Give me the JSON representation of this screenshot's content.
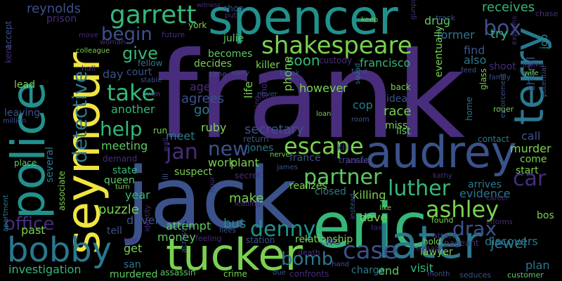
{
  "colors": {
    "background": "#000000",
    "yellow": "#f0e442",
    "green": "#5ec962",
    "light_green": "#7ad151",
    "teal": "#21918c",
    "blue_teal": "#2a788e",
    "blue": "#3b528b",
    "purple": "#472d7b",
    "dark_purple": "#440154",
    "mint": "#35b779"
  },
  "words": {
    "frank": "frank",
    "jack": "jack",
    "spencer": "spencer",
    "eric": "eric",
    "audrey": "audrey",
    "tucker": "tucker",
    "later": "later",
    "seymour": "seymour",
    "police": "police",
    "bobby": "bobby",
    "terry": "terry",
    "shakespeare": "shakespeare",
    "garrett": "garrett",
    "ashley": "ashley",
    "luther": "luther",
    "partner": "partner",
    "denny": "denny",
    "escape": "escape",
    "case": "case",
    "box": "box",
    "car": "car",
    "bomb": "bomb",
    "help": "help",
    "take": "take",
    "give": "give",
    "begin": "begin",
    "detective": "detective",
    "jan": "jan",
    "new": "new",
    "drax": "drax",
    "jewel": "jewel",
    "reynolds": "reynolds",
    "shop": "shop",
    "put": "put",
    "receives": "receives",
    "chase": "chase",
    "drug": "drug",
    "former": "former",
    "try": "try",
    "find": "find",
    "also": "also",
    "soon": "soon",
    "francisco": "francisco",
    "becomes": "becomes",
    "julie": "julie",
    "york": "york",
    "decides": "decides",
    "killer": "killer",
    "agent": "agent",
    "agrees": "agrees",
    "go": "go",
    "however": "however",
    "idea": "idea",
    "back": "back",
    "cop": "cop",
    "race": "race",
    "miss": "miss",
    "list": "list",
    "secretary": "secretary",
    "ruby": "ruby",
    "meet": "meet",
    "another": "another",
    "meeting": "meeting",
    "work": "work",
    "plant": "plant",
    "suspect": "suspect",
    "jones": "jones",
    "france": "france",
    "realizes": "realizes",
    "closed": "closed",
    "killing": "killing",
    "make": "make",
    "attempt": "attempt",
    "money": "money",
    "bus": "bus",
    "dave": "dave",
    "two": "two",
    "relationship": "relationship",
    "charge": "charge",
    "end": "end",
    "visit": "visit",
    "lawyer": "lawyer",
    "hold": "hold",
    "discovers": "discovers",
    "plan": "plan",
    "evidence": "evidence",
    "arrives": "arrives",
    "start": "start",
    "come": "come",
    "murder": "murder",
    "call": "call",
    "contact": "contact",
    "bos": "bos",
    "office": "office",
    "past": "past",
    "investigation": "investigation",
    "year": "year",
    "puzzle": "puzzle",
    "driver": "driver",
    "tell": "tell",
    "get": "get",
    "san": "san",
    "murdered": "murdered",
    "assassin": "assassin",
    "crime": "crime",
    "confronts": "confronts",
    "customer": "customer",
    "state": "state",
    "queen": "queen",
    "demand": "demand",
    "leaving": "leaving",
    "lead": "lead",
    "kent": "kent",
    "prison": "prison",
    "day": "day",
    "court": "court",
    "fellow": "fellow",
    "place": "place",
    "several": "several",
    "associate": "associate",
    "life": "life",
    "phone": "phone",
    "shot": "shot",
    "eventually": "eventually",
    "cheryl": "cheryl",
    "job": "job",
    "shoot": "shoot",
    "home": "home",
    "learns": "learns",
    "wife": "wife",
    "transfer": "transfer",
    "kill": "kill",
    "loan": "loan",
    "squad": "squad",
    "fund": "fund",
    "custody": "custody",
    "secret": "secret",
    "james": "james",
    "nerve": "nerve",
    "return": "return",
    "station": "station",
    "death": "death",
    "hour": "hour",
    "leading": "leading",
    "feeling": "feeling",
    "across": "across",
    "flees": "flees",
    "hand": "hand",
    "tax": "tax",
    "like": "like",
    "found": "found",
    "reveals": "reveals",
    "pageant": "pageant",
    "informs": "informs",
    "career": "career",
    "month": "month",
    "seduces": "seduces",
    "due": "due",
    "million": "million",
    "apartment": "apartment",
    "accept": "accept",
    "move": "move",
    "woman": "woman",
    "colleague": "colleague",
    "future": "future",
    "hall": "hall",
    "stable": "stable",
    "men": "men",
    "run": "run",
    "time": "time",
    "early": "early",
    "break": "break",
    "never": "never",
    "keep": "keep",
    "gunpoint": "gunpoint",
    "track": "track",
    "explains": "explains",
    "feed": "feed",
    "family": "family",
    "glass": "glass",
    "roger": "roger",
    "potential": "potential",
    "enforcement": "enforcement",
    "room": "room",
    "attack": "attack",
    "kathy": "kathy",
    "instead": "instead",
    "working": "working",
    "witness": "witness",
    "identity": "identity",
    "turn": "turn",
    "wall": "wall",
    "jackson": "jackson",
    "buy": "buy",
    "ill": "ill"
  }
}
